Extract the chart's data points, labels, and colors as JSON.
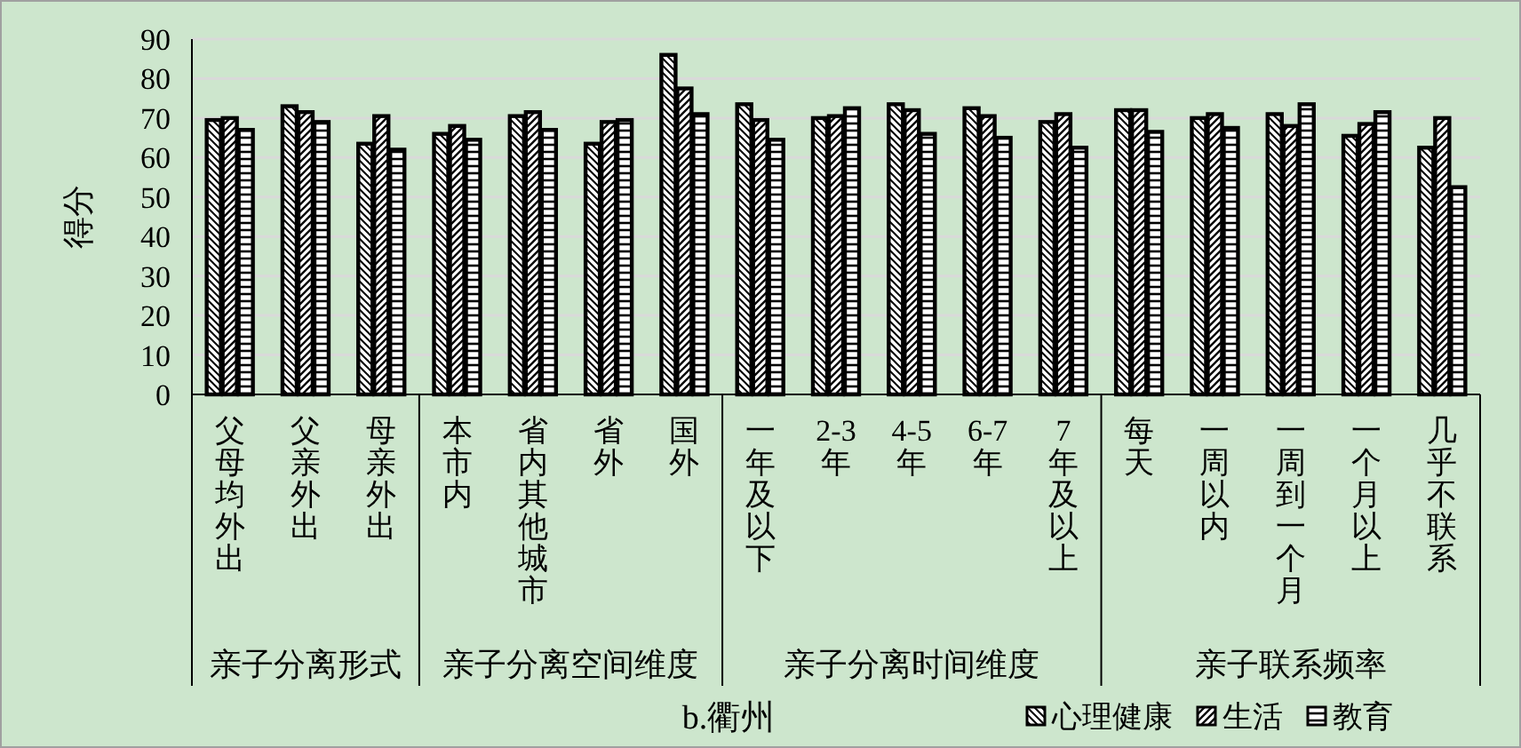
{
  "chart_data": {
    "type": "bar",
    "title": "b.衢州",
    "ylabel": "得分",
    "categories": [
      "父母均外出",
      "父亲外出",
      "母亲外出",
      "本市内",
      "省内其他城市",
      "省外",
      "国外",
      "一年及以下",
      "2-3年",
      "4-5年",
      "6-7年",
      "7年及以上",
      "每天",
      "一周以内",
      "一周到一个月",
      "一个月以上",
      "几乎不联系"
    ],
    "series": [
      {
        "name": "心理健康",
        "color": "#000000",
        "values": [
          69.5,
          73,
          63.5,
          66,
          70.5,
          63.5,
          86,
          73.5,
          70,
          73.5,
          72.5,
          69,
          72,
          70,
          71,
          65.5,
          62.5
        ]
      },
      {
        "name": "生活",
        "color": "#000000",
        "values": [
          70,
          71.5,
          70.5,
          68,
          71.5,
          69,
          77.5,
          69.5,
          70.5,
          72,
          70.5,
          71,
          72,
          71,
          68,
          68.5,
          70
        ]
      },
      {
        "name": "教育",
        "color": "#000000",
        "values": [
          67,
          69,
          62,
          64.5,
          67,
          69.5,
          71,
          64.5,
          72.5,
          66,
          65,
          62.5,
          66.5,
          67.5,
          73.5,
          71.5,
          52.5
        ]
      }
    ],
    "annotations": [
      "亲子分离形式",
      "亲子分离空间维度",
      "亲子分离时间维度",
      "亲子联系频率"
    ],
    "ylim": [
      0,
      90
    ],
    "yticks": [
      0,
      10,
      20,
      30,
      40,
      50,
      60,
      70,
      80,
      90
    ],
    "grid": "y",
    "legend": "bottom right"
  }
}
